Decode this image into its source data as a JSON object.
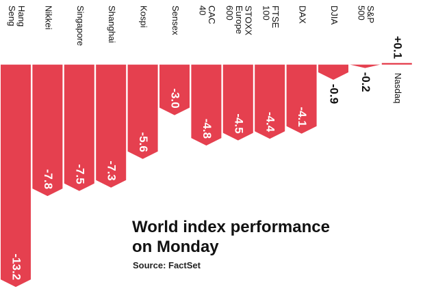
{
  "chart_data": {
    "type": "bar",
    "title": "World index performance on Monday",
    "source": "Source: FactSet",
    "categories": [
      "Hang Seng",
      "Nikkei",
      "Singapore",
      "Shanghai",
      "Kospi",
      "Sensex",
      "CAC 40",
      "STOXX Europe 600",
      "FTSE 100",
      "DAX",
      "DJIA",
      "S&P 500",
      "Nasdaq"
    ],
    "values": [
      -13.2,
      -7.8,
      -7.5,
      -7.3,
      -5.6,
      -3.0,
      -4.8,
      -4.5,
      -4.4,
      -4.1,
      -0.9,
      -0.2,
      0.1
    ],
    "value_labels": [
      "-13.2",
      "-7.8",
      "-7.5",
      "-7.3",
      "-5.6",
      "-3.0",
      "-4.8",
      "-4.5",
      "-4.4",
      "-4.1",
      "-0.9",
      "-0.2",
      "+0.1"
    ],
    "color": "#e5404f",
    "ylim": [
      -14,
      1
    ]
  }
}
